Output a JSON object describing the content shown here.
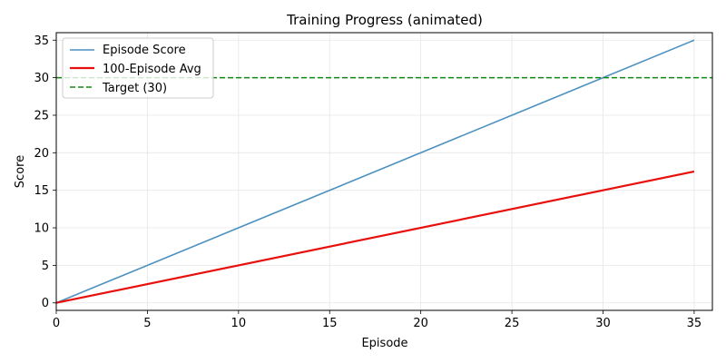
{
  "chart_data": {
    "type": "line",
    "title": "Training Progress (animated)",
    "xlabel": "Episode",
    "ylabel": "Score",
    "xlim": [
      0,
      36
    ],
    "ylim": [
      -1,
      36
    ],
    "xticks": [
      0,
      5,
      10,
      15,
      20,
      25,
      30,
      35
    ],
    "yticks": [
      0,
      5,
      10,
      15,
      20,
      25,
      30,
      35
    ],
    "grid": true,
    "legend_position": "upper-left",
    "series": [
      {
        "name": "Episode Score",
        "color": "#4c91c0",
        "style": "solid",
        "x": [
          0,
          35
        ],
        "y": [
          0,
          35
        ]
      },
      {
        "name": "100-Episode Avg",
        "color": "#e8100c",
        "style": "solid",
        "x": [
          0,
          35
        ],
        "y": [
          0,
          17.5
        ]
      },
      {
        "name": "Target (30)",
        "color": "#118811",
        "style": "dashed",
        "hline": 30
      }
    ]
  }
}
